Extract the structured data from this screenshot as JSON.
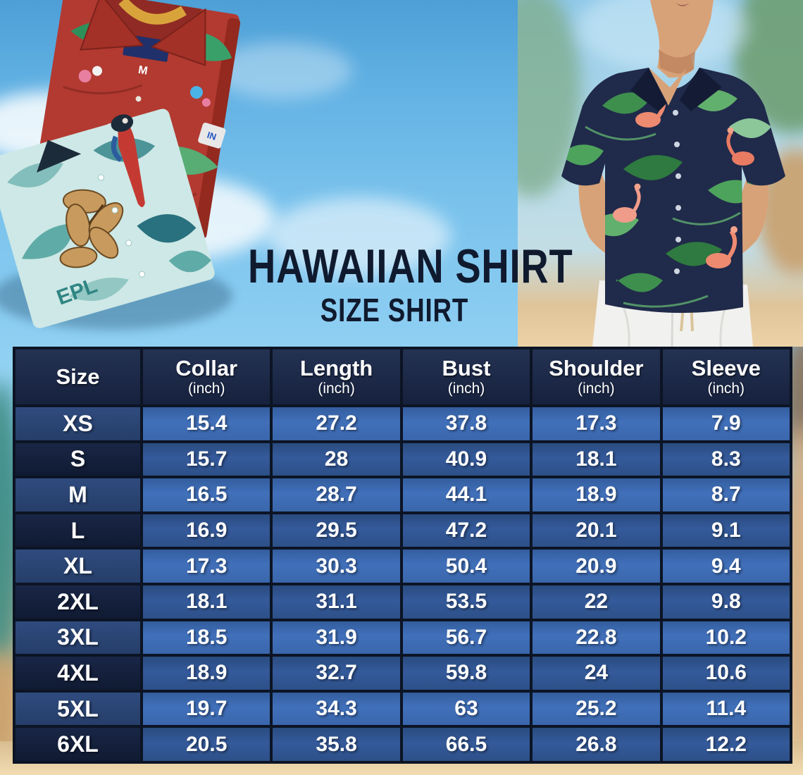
{
  "title": {
    "main": "HAWAIIAN SHIRT",
    "subtitle": "SIZE SHIRT"
  },
  "photos": {
    "left": {
      "alt": "Folded red and teal Hawaiian shirts",
      "print_text": "EPL",
      "label_size": "M"
    },
    "right": {
      "alt": "Man wearing navy Hawaiian shirt with flamingos and tropical leaves"
    }
  },
  "size_chart": {
    "columns": [
      {
        "label": "Size",
        "unit": ""
      },
      {
        "label": "Collar",
        "unit": "(inch)"
      },
      {
        "label": "Length",
        "unit": "(inch)"
      },
      {
        "label": "Bust",
        "unit": "(inch)"
      },
      {
        "label": "Shoulder",
        "unit": "(inch)"
      },
      {
        "label": "Sleeve",
        "unit": "(inch)"
      }
    ],
    "rows": [
      {
        "size": "XS",
        "values": [
          "15.4",
          "27.2",
          "37.8",
          "17.3",
          "7.9"
        ]
      },
      {
        "size": "S",
        "values": [
          "15.7",
          "28",
          "40.9",
          "18.1",
          "8.3"
        ]
      },
      {
        "size": "M",
        "values": [
          "16.5",
          "28.7",
          "44.1",
          "18.9",
          "8.7"
        ]
      },
      {
        "size": "L",
        "values": [
          "16.9",
          "29.5",
          "47.2",
          "20.1",
          "9.1"
        ]
      },
      {
        "size": "XL",
        "values": [
          "17.3",
          "30.3",
          "50.4",
          "20.9",
          "9.4"
        ]
      },
      {
        "size": "2XL",
        "values": [
          "18.1",
          "31.1",
          "53.5",
          "22",
          "9.8"
        ]
      },
      {
        "size": "3XL",
        "values": [
          "18.5",
          "31.9",
          "56.7",
          "22.8",
          "10.2"
        ]
      },
      {
        "size": "4XL",
        "values": [
          "18.9",
          "32.7",
          "59.8",
          "24",
          "10.6"
        ]
      },
      {
        "size": "5XL",
        "values": [
          "19.7",
          "34.3",
          "63",
          "25.2",
          "11.4"
        ]
      },
      {
        "size": "6XL",
        "values": [
          "20.5",
          "35.8",
          "66.5",
          "26.8",
          "12.2"
        ]
      }
    ]
  },
  "colors": {
    "header_bg": "#1a2742",
    "row_blue_light": "#3d6bb1",
    "row_blue_dark": "#2d5088",
    "size_cell_light": "#2b4573",
    "size_cell_dark": "#141f3a",
    "grid_line": "#0c1424",
    "title_text": "#101a2e",
    "table_text": "#ffffff",
    "sky": "#79c2ec",
    "sand": "#ecd2a6"
  },
  "chart_data": {
    "type": "table",
    "title": "HAWAIIAN SHIRT — SIZE SHIRT",
    "columns": [
      "Size",
      "Collar (inch)",
      "Length (inch)",
      "Bust (inch)",
      "Shoulder (inch)",
      "Sleeve (inch)"
    ],
    "rows": [
      [
        "XS",
        15.4,
        27.2,
        37.8,
        17.3,
        7.9
      ],
      [
        "S",
        15.7,
        28,
        40.9,
        18.1,
        8.3
      ],
      [
        "M",
        16.5,
        28.7,
        44.1,
        18.9,
        8.7
      ],
      [
        "L",
        16.9,
        29.5,
        47.2,
        20.1,
        9.1
      ],
      [
        "XL",
        17.3,
        30.3,
        50.4,
        20.9,
        9.4
      ],
      [
        "2XL",
        18.1,
        31.1,
        53.5,
        22,
        9.8
      ],
      [
        "3XL",
        18.5,
        31.9,
        56.7,
        22.8,
        10.2
      ],
      [
        "4XL",
        18.9,
        32.7,
        59.8,
        24,
        10.6
      ],
      [
        "5XL",
        19.7,
        34.3,
        63,
        25.2,
        11.4
      ],
      [
        "6XL",
        20.5,
        35.8,
        66.5,
        26.8,
        12.2
      ]
    ]
  }
}
